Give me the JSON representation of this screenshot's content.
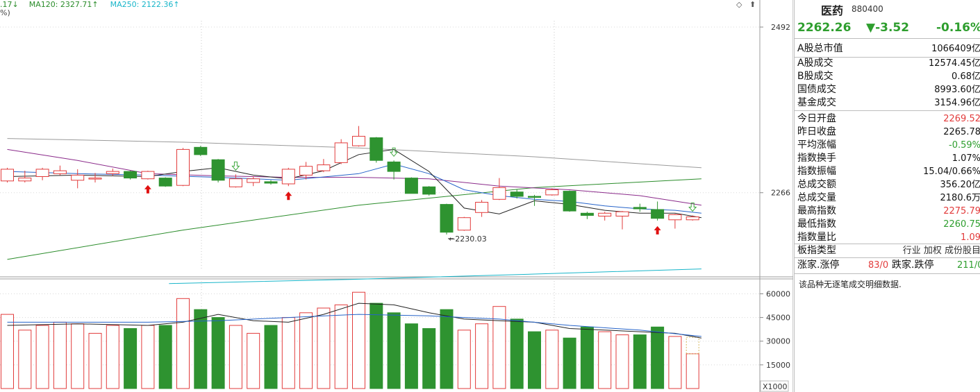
{
  "legend": {
    "ma_prev_fragment": ".17↓",
    "ma120": "MA120: 2327.71↑",
    "ma250": "MA250: 2122.36↑",
    "pct_fragment": "%)",
    "colors": {
      "ma_prev": "#2a8c2a",
      "ma120": "#2a8c2a",
      "ma250": "#17b5c9"
    }
  },
  "chart_controls": {
    "diamond": "◇",
    "scroll": "⬆"
  },
  "price_axis": {
    "labels": [
      "2492",
      "2266"
    ],
    "min_label": "2230.03"
  },
  "volume_axis": {
    "labels": [
      "60000",
      "45000",
      "30000",
      "15000"
    ],
    "unit": "X1000"
  },
  "stock": {
    "name": "医药",
    "code": "880400",
    "price": "2262.26",
    "change": "▼-3.52",
    "change_pct": "-0.16%"
  },
  "stats_group1": [
    {
      "label": "A股总市值",
      "value": "1066409亿",
      "color": "dark"
    }
  ],
  "stats_group2": [
    {
      "label": "A股成交",
      "value": "12574.45亿",
      "color": "dark"
    },
    {
      "label": "B股成交",
      "value": "0.68亿",
      "color": "dark"
    },
    {
      "label": "国债成交",
      "value": "8993.60亿",
      "color": "dark"
    },
    {
      "label": "基金成交",
      "value": "3154.96亿",
      "color": "dark"
    }
  ],
  "stats_group3": [
    {
      "label": "今日开盘",
      "value": "2269.52",
      "color": "red"
    },
    {
      "label": "昨日收盘",
      "value": "2265.78",
      "color": "dark"
    },
    {
      "label": "平均涨幅",
      "value": "-0.59%",
      "color": "green"
    },
    {
      "label": "指数换手",
      "value": "1.07%",
      "color": "dark"
    },
    {
      "label": "指数振幅",
      "value": "15.04/0.66%",
      "color": "dark"
    },
    {
      "label": "总成交额",
      "value": "356.20亿",
      "color": "dark"
    },
    {
      "label": "总成交量",
      "value": "2180.6万",
      "color": "dark"
    },
    {
      "label": "最高指数",
      "value": "2275.79",
      "color": "red"
    },
    {
      "label": "最低指数",
      "value": "2260.75",
      "color": "green"
    },
    {
      "label": "指数量比",
      "value": "1.09",
      "color": "red"
    }
  ],
  "board_type": {
    "label": "板指类型",
    "tags": "行业 加权 成份股目"
  },
  "breadth": {
    "up_label": "涨家.涨停",
    "up_value": "83/0",
    "down_label": "跌家.跌停",
    "down_value": "211/0"
  },
  "note": "该品种无逐笔成交明细数据.",
  "chart_data": {
    "type": "candlestick",
    "price_ticks": [
      2492,
      2266
    ],
    "ylim": [
      2155,
      2510
    ],
    "candles": [
      {
        "o": 2282,
        "c": 2298,
        "h": 2300,
        "l": 2280
      },
      {
        "o": 2282,
        "c": 2286,
        "h": 2296,
        "l": 2280
      },
      {
        "o": 2288,
        "c": 2298,
        "h": 2300,
        "l": 2283
      },
      {
        "o": 2292,
        "c": 2296,
        "h": 2303,
        "l": 2290
      },
      {
        "o": 2283,
        "c": 2290,
        "h": 2298,
        "l": 2272
      },
      {
        "o": 2286,
        "c": 2286,
        "h": 2293,
        "l": 2280
      },
      {
        "o": 2292,
        "c": 2295,
        "h": 2299,
        "l": 2289
      },
      {
        "o": 2295,
        "c": 2286,
        "h": 2296,
        "l": 2284
      },
      {
        "o": 2285,
        "c": 2295,
        "h": 2296,
        "l": 2284
      },
      {
        "o": 2286,
        "c": 2275,
        "h": 2287,
        "l": 2274
      },
      {
        "o": 2276,
        "c": 2325,
        "h": 2327,
        "l": 2275
      },
      {
        "o": 2328,
        "c": 2318,
        "h": 2330,
        "l": 2316
      },
      {
        "o": 2311,
        "c": 2283,
        "h": 2312,
        "l": 2280
      },
      {
        "o": 2274,
        "c": 2285,
        "h": 2291,
        "l": 2273
      },
      {
        "o": 2280,
        "c": 2285,
        "h": 2288,
        "l": 2275
      },
      {
        "o": 2281,
        "c": 2279,
        "h": 2283,
        "l": 2277
      },
      {
        "o": 2278,
        "c": 2298,
        "h": 2300,
        "l": 2275
      },
      {
        "o": 2290,
        "c": 2302,
        "h": 2308,
        "l": 2284
      },
      {
        "o": 2296,
        "c": 2304,
        "h": 2312,
        "l": 2294
      },
      {
        "o": 2307,
        "c": 2334,
        "h": 2339,
        "l": 2305
      },
      {
        "o": 2330,
        "c": 2343,
        "h": 2357,
        "l": 2329
      },
      {
        "o": 2341,
        "c": 2310,
        "h": 2342,
        "l": 2307
      },
      {
        "o": 2308,
        "c": 2295,
        "h": 2310,
        "l": 2284
      },
      {
        "o": 2286,
        "c": 2265,
        "h": 2287,
        "l": 2265
      },
      {
        "o": 2274,
        "c": 2264,
        "h": 2275,
        "l": 2262
      },
      {
        "o": 2250,
        "c": 2212,
        "h": 2251,
        "l": 2209
      },
      {
        "o": 2215,
        "c": 2232,
        "h": 2233,
        "l": 2214
      },
      {
        "o": 2239,
        "c": 2253,
        "h": 2256,
        "l": 2233
      },
      {
        "o": 2257,
        "c": 2273,
        "h": 2286,
        "l": 2256
      },
      {
        "o": 2267,
        "c": 2261,
        "h": 2271,
        "l": 2258
      },
      {
        "o": 2261,
        "c": 2260,
        "h": 2263,
        "l": 2248
      },
      {
        "o": 2263,
        "c": 2270,
        "h": 2272,
        "l": 2262
      },
      {
        "o": 2268,
        "c": 2241,
        "h": 2269,
        "l": 2240
      },
      {
        "o": 2238,
        "c": 2235,
        "h": 2240,
        "l": 2230
      },
      {
        "o": 2234,
        "c": 2238,
        "h": 2240,
        "l": 2228
      },
      {
        "o": 2234,
        "c": 2240,
        "h": 2241,
        "l": 2216
      },
      {
        "o": 2246,
        "c": 2244,
        "h": 2251,
        "l": 2240
      },
      {
        "o": 2243,
        "c": 2231,
        "h": 2254,
        "l": 2228
      },
      {
        "o": 2229,
        "c": 2236,
        "h": 2237,
        "l": 2217
      },
      {
        "o": 2229,
        "c": 2233,
        "h": 2235,
        "l": 2228
      }
    ],
    "up_marks": [
      8,
      16,
      37
    ],
    "down_marks": [
      13,
      22,
      39
    ],
    "lines": [
      {
        "name": "MA120",
        "color": "#2a8c2a",
        "points": [
          [
            0,
            2175
          ],
          [
            10,
            2215
          ],
          [
            20,
            2249
          ],
          [
            30,
            2273
          ],
          [
            39.5,
            2285
          ]
        ]
      },
      {
        "name": "MA250",
        "color": "#17b5c9",
        "points": [
          [
            9.2,
            2142
          ],
          [
            20,
            2148
          ],
          [
            30,
            2155
          ],
          [
            39.5,
            2162
          ]
        ]
      },
      {
        "name": "gray",
        "color": "#9a9a9a",
        "points": [
          [
            0,
            2340
          ],
          [
            10,
            2335
          ],
          [
            20,
            2327
          ],
          [
            30,
            2315
          ],
          [
            39.5,
            2300
          ]
        ]
      },
      {
        "name": "purple",
        "color": "#8a2a8a",
        "points": [
          [
            0,
            2325
          ],
          [
            4,
            2310
          ],
          [
            8,
            2292
          ],
          [
            12,
            2289
          ],
          [
            16,
            2287
          ],
          [
            20,
            2287
          ],
          [
            24,
            2285
          ],
          [
            28,
            2275
          ],
          [
            32,
            2270
          ],
          [
            36,
            2262
          ],
          [
            39.5,
            2249
          ]
        ]
      },
      {
        "name": "blue",
        "color": "#2563c9",
        "points": [
          [
            0,
            2295
          ],
          [
            4,
            2292
          ],
          [
            8,
            2290
          ],
          [
            12,
            2287
          ],
          [
            16,
            2283
          ],
          [
            20,
            2292
          ],
          [
            22,
            2305
          ],
          [
            24,
            2292
          ],
          [
            26,
            2270
          ],
          [
            28,
            2262
          ],
          [
            30,
            2257
          ],
          [
            32,
            2254
          ],
          [
            34,
            2248
          ],
          [
            36,
            2244
          ],
          [
            38,
            2242
          ],
          [
            39.5,
            2238
          ]
        ]
      },
      {
        "name": "black",
        "color": "#222222",
        "points": [
          [
            0,
            2288
          ],
          [
            4,
            2290
          ],
          [
            8,
            2288
          ],
          [
            10,
            2295
          ],
          [
            12,
            2300
          ],
          [
            14,
            2290
          ],
          [
            16,
            2285
          ],
          [
            18,
            2296
          ],
          [
            20,
            2318
          ],
          [
            22,
            2325
          ],
          [
            24,
            2295
          ],
          [
            26,
            2245
          ],
          [
            28,
            2237
          ],
          [
            30,
            2255
          ],
          [
            32,
            2250
          ],
          [
            34,
            2242
          ],
          [
            36,
            2238
          ],
          [
            38,
            2238
          ],
          [
            39.5,
            2232
          ]
        ]
      }
    ],
    "volume_ticks": [
      60000,
      45000,
      30000,
      15000
    ],
    "volume": [
      47000,
      37000,
      40000,
      42000,
      41000,
      35000,
      40000,
      38000,
      40000,
      40000,
      57000,
      50000,
      45000,
      40000,
      35000,
      40000,
      45000,
      48000,
      51000,
      53000,
      61000,
      54000,
      48000,
      41000,
      38000,
      50000,
      37000,
      41000,
      52000,
      44000,
      36000,
      37000,
      32000,
      39000,
      36000,
      34000,
      34000,
      39000,
      33000,
      22000
    ],
    "vol_ma1": [
      [
        0,
        40000
      ],
      [
        4,
        41000
      ],
      [
        8,
        40000
      ],
      [
        10,
        42000
      ],
      [
        12,
        47000
      ],
      [
        14,
        43000
      ],
      [
        16,
        42000
      ],
      [
        18,
        47000
      ],
      [
        20,
        54000
      ],
      [
        22,
        53000
      ],
      [
        24,
        48000
      ],
      [
        26,
        44000
      ],
      [
        28,
        43000
      ],
      [
        30,
        42000
      ],
      [
        32,
        38000
      ],
      [
        34,
        37000
      ],
      [
        36,
        36000
      ],
      [
        38,
        35000
      ],
      [
        39.5,
        32000
      ]
    ],
    "vol_ma2": [
      [
        0,
        42000
      ],
      [
        4,
        42000
      ],
      [
        8,
        42000
      ],
      [
        12,
        43000
      ],
      [
        16,
        45000
      ],
      [
        20,
        47000
      ],
      [
        24,
        46000
      ],
      [
        28,
        44000
      ],
      [
        32,
        40000
      ],
      [
        36,
        37000
      ],
      [
        39.5,
        33000
      ]
    ]
  }
}
